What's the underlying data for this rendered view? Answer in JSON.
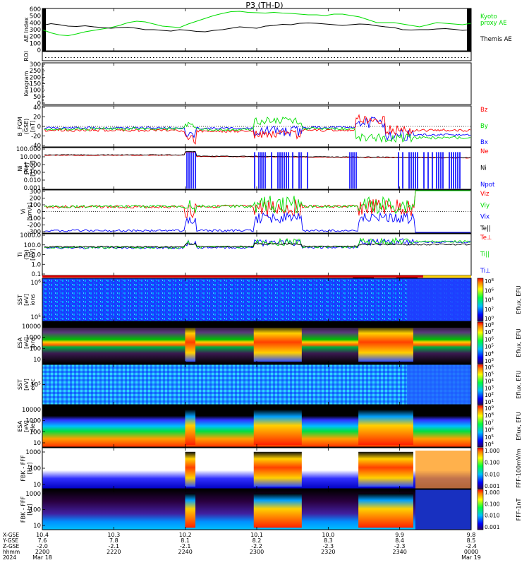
{
  "chart_data": {
    "type": "multi-panel",
    "title": "P3 (TH-D)",
    "time_labels": [
      "2200",
      "2220",
      "2240",
      "2300",
      "2320",
      "2340",
      "0000"
    ],
    "orbit_rows": {
      "labels": [
        "X-GSE",
        "Y-GSE",
        "Z-GSE",
        "hhmm",
        "2024"
      ],
      "x_gse": [
        "10.4",
        "10.3",
        "10.2",
        "10.1",
        "10.0",
        "9.9",
        "9.8"
      ],
      "y_gse": [
        "7.6",
        "7.8",
        "8.1",
        "8.2",
        "8.3",
        "8.4",
        "8.5"
      ],
      "z_gse": [
        "-2.0",
        "-2.1",
        "-2.1",
        "-2.2",
        "-2.3",
        "-2.3",
        "-2.4"
      ],
      "date_start": "Mar 18",
      "date_end": "Mar 19"
    },
    "panels": [
      {
        "id": "ae",
        "ylabel": "AE Index",
        "yticks": [
          "600",
          "500",
          "400",
          "300",
          "200",
          "100",
          "0"
        ],
        "series": [
          {
            "name": "Kyoto\nproxy AE",
            "color": "#00dd00",
            "values": [
              300,
              255,
              225,
              215,
              240,
              270,
              290,
              310,
              330,
              360,
              400,
              420,
              410,
              380,
              350,
              340,
              330,
              380,
              420,
              460,
              500,
              530,
              555,
              560,
              545,
              540,
              535,
              545,
              535,
              530,
              520,
              510,
              510,
              500,
              520,
              520,
              500,
              480,
              440,
              400,
              400,
              400,
              380,
              360,
              340,
              370,
              400,
              390,
              380,
              370,
              390
            ]
          },
          {
            "name": "Themis AE",
            "color": "#000000",
            "values": [
              360,
              385,
              370,
              350,
              345,
              355,
              340,
              330,
              320,
              330,
              335,
              320,
              300,
              300,
              290,
              280,
              300,
              290,
              275,
              270,
              290,
              300,
              320,
              340,
              330,
              320,
              350,
              360,
              375,
              370,
              390,
              395,
              390,
              380,
              370,
              360,
              370,
              380,
              375,
              355,
              340,
              330,
              300,
              295,
              300,
              300,
              310,
              315,
              305,
              290,
              300
            ]
          }
        ]
      },
      {
        "id": "roi",
        "ylabel": "ROI"
      },
      {
        "id": "keogram",
        "ylabel": "Keogram",
        "yticks": [
          "300",
          "250",
          "200",
          "150",
          "100",
          "50",
          "0"
        ]
      },
      {
        "id": "bfgm",
        "ylabel": "B_FGM\n(GSE)\n[nT]",
        "yticks": [
          "40",
          "20",
          "0",
          "-20",
          "-40"
        ],
        "series": [
          {
            "name": "Bz",
            "color": "#ff0000"
          },
          {
            "name": "By",
            "color": "#00dd00"
          },
          {
            "name": "Bx",
            "color": "#0000ff"
          }
        ]
      },
      {
        "id": "density",
        "ylabel": "Ni\n(Ne)\n[1/cc]",
        "yticks": [
          "100.000",
          "10.000",
          "1.000",
          "0.100",
          "0.010",
          "0.001"
        ],
        "series": [
          {
            "name": "Ne",
            "color": "#ff0000"
          },
          {
            "name": "Ni",
            "color": "#000000"
          },
          {
            "name": "Npot",
            "color": "#0000ff"
          }
        ]
      },
      {
        "id": "velocity",
        "ylabel": "Vi\n[km/s]",
        "yticks": [
          "300",
          "200",
          "100",
          "0",
          "-100",
          "-200",
          "-300"
        ],
        "series": [
          {
            "name": "Viz",
            "color": "#ff0000"
          },
          {
            "name": "Viy",
            "color": "#00dd00"
          },
          {
            "name": "Vix",
            "color": "#0000ff"
          },
          {
            "name": "Te||",
            "color": "#000000"
          }
        ]
      },
      {
        "id": "temp",
        "ylabel": "Ti\n(Te)\n[eV]",
        "yticks": [
          "1000.0",
          "100.0",
          "10.0",
          "1.0",
          "0.1"
        ],
        "series": [
          {
            "name": "Te⊥",
            "color": "#ff0000"
          },
          {
            "name": "Ti||",
            "color": "#00dd00"
          },
          {
            "name": "Ti⊥",
            "color": "#0000ff"
          }
        ]
      },
      {
        "id": "sst_i",
        "ylabel": "SST\n[eV]\nions",
        "yticks": [
          "10^6",
          "10^5"
        ],
        "cbar_label": "Eflux, EFU",
        "cbar_ticks": [
          "10^8",
          "10^6",
          "10^4",
          "10^2",
          "10^0"
        ]
      },
      {
        "id": "esa_i",
        "ylabel": "ESA\n[eV]\nions",
        "yticks": [
          "10000",
          "1000",
          "100",
          "10"
        ],
        "cbar_label": "Eflux, EFU",
        "cbar_ticks": [
          "10^8",
          "10^7",
          "10^6",
          "10^5",
          "10^4",
          "10^3"
        ]
      },
      {
        "id": "sst_e",
        "ylabel": "SST\n[eV]\nelec",
        "yticks": [
          "10^5"
        ],
        "cbar_label": "Eflux, EFU",
        "cbar_ticks": [
          "10^6",
          "10^5",
          "10^4",
          "10^3",
          "10^2",
          "10^1"
        ]
      },
      {
        "id": "esa_e",
        "ylabel": "ESA\n[eV]\nelec",
        "yticks": [
          "10000",
          "1000",
          "100",
          "10"
        ],
        "cbar_label": "Eflux, EFU",
        "cbar_ticks": [
          "10^9",
          "10^8",
          "10^7",
          "10^6",
          "10^5",
          "10^4"
        ]
      },
      {
        "id": "fbk_e",
        "ylabel": "FBK - FFF\n[Hz]",
        "yticks": [
          "1000",
          "100",
          "10"
        ],
        "cbar_label": "FFF-100mV/m",
        "cbar_ticks": [
          "1.000",
          "0.100",
          "0.010",
          "0.001"
        ]
      },
      {
        "id": "fbk_b",
        "ylabel": "FBK - FFF\n[Hz]",
        "yticks": [
          "1000",
          "100",
          "10"
        ],
        "cbar_label": "FFF-1nT",
        "cbar_ticks": [
          "1.000",
          "0.100",
          "0.010",
          "0.001"
        ]
      }
    ]
  }
}
